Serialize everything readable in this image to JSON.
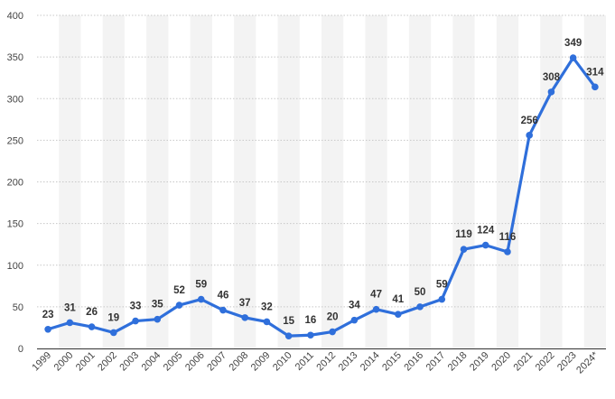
{
  "chart_data": {
    "type": "line",
    "title": "",
    "xlabel": "",
    "ylabel": "",
    "categories": [
      "1999",
      "2000",
      "2001",
      "2002",
      "2003",
      "2004",
      "2005",
      "2006",
      "2007",
      "2008",
      "2009",
      "2010",
      "2011",
      "2012",
      "2013",
      "2014",
      "2015",
      "2016",
      "2017",
      "2018",
      "2019",
      "2020",
      "2021",
      "2022",
      "2023",
      "2024*"
    ],
    "series": [
      {
        "values": [
          23,
          31,
          26,
          19,
          33,
          35,
          52,
          59,
          46,
          37,
          32,
          15,
          16,
          20,
          34,
          47,
          41,
          50,
          59,
          119,
          124,
          116,
          256,
          308,
          349,
          314
        ]
      }
    ],
    "ylim": [
      0,
      400
    ],
    "yticks": [
      0,
      50,
      100,
      150,
      200,
      250,
      300,
      350,
      400
    ],
    "grid": true,
    "legend": "none",
    "colors": {
      "line": "#2f6fdb",
      "band": "#f3f3f3",
      "grid": "#c8c8c8",
      "axis": "#333333"
    }
  }
}
